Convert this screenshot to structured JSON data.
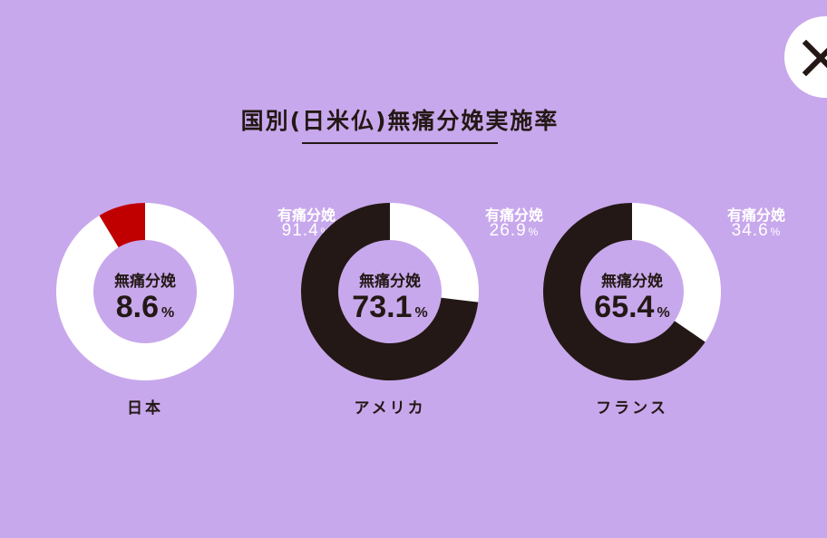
{
  "close_button": {
    "icon": "close-icon"
  },
  "chart_data": {
    "title": "国別(日米仏)無痛分娩実施率",
    "type": "pie",
    "colors": {
      "painless_japan": "#c00000",
      "painless_other": "#231815",
      "with_pain": "#ffffff"
    },
    "charts": [
      {
        "country": "日本",
        "slices": [
          {
            "label": "無痛分娩",
            "value": 8.6,
            "color": "#c00000"
          },
          {
            "label": "有痛分娩",
            "value": 91.4,
            "color": "#ffffff"
          }
        ],
        "center_label": "無痛分娩",
        "center_value": "8.6",
        "side_label": "有痛分娩",
        "side_value": "91.4",
        "unit": "%"
      },
      {
        "country": "アメリカ",
        "slices": [
          {
            "label": "無痛分娩",
            "value": 73.1,
            "color": "#231815"
          },
          {
            "label": "有痛分娩",
            "value": 26.9,
            "color": "#ffffff"
          }
        ],
        "center_label": "無痛分娩",
        "center_value": "73.1",
        "side_label": "有痛分娩",
        "side_value": "26.9",
        "unit": "%"
      },
      {
        "country": "フランス",
        "slices": [
          {
            "label": "無痛分娩",
            "value": 65.4,
            "color": "#231815"
          },
          {
            "label": "有痛分娩",
            "value": 34.6,
            "color": "#ffffff"
          }
        ],
        "center_label": "無痛分娩",
        "center_value": "65.4",
        "side_label": "有痛分娩",
        "side_value": "34.6",
        "unit": "%"
      }
    ]
  }
}
